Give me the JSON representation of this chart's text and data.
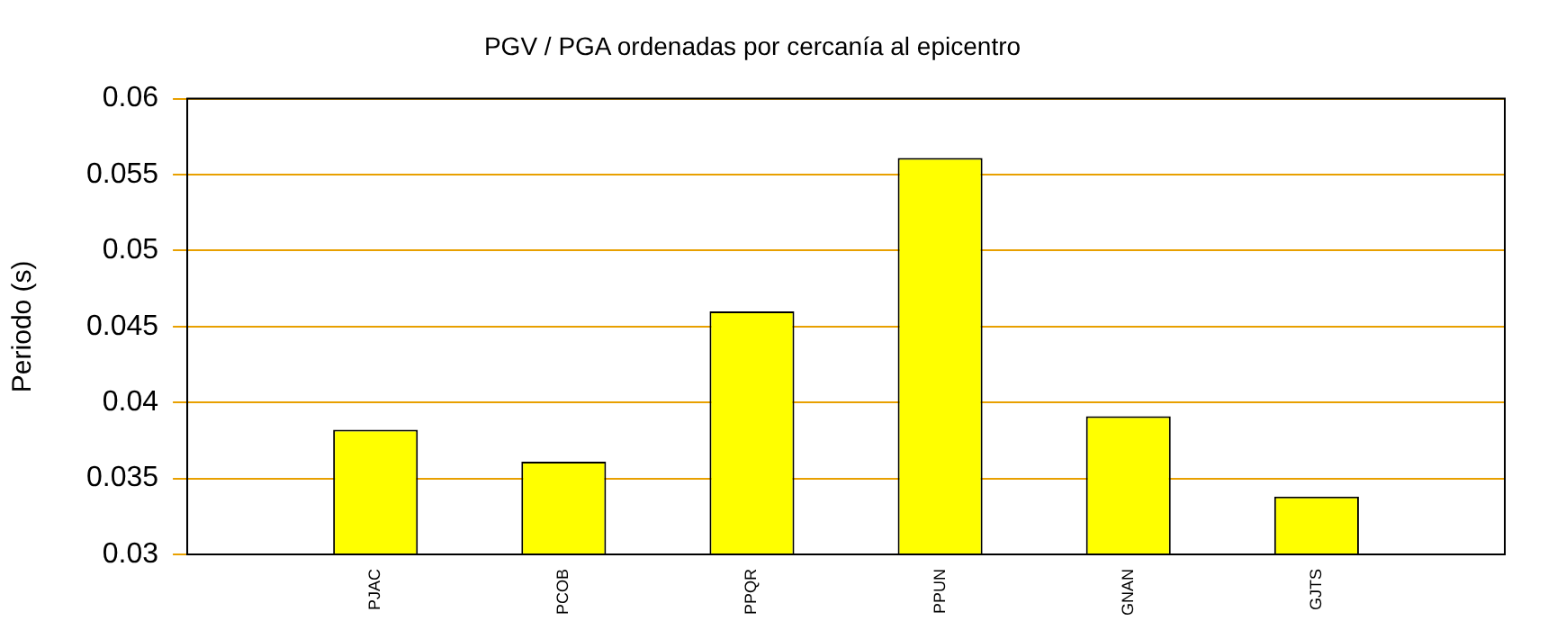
{
  "chart_data": {
    "type": "bar",
    "title": "PGV / PGA ordenadas por cercanía al epicentro",
    "ylabel": "Periodo (s)",
    "categories": [
      null,
      "PJAC",
      "PCOB",
      "PPQR",
      "PPUN",
      "GNAN",
      "GJTS",
      null
    ],
    "series": [
      {
        "color": "#ffff00",
        "values": [
          null,
          0.0382,
          0.0361,
          0.046,
          0.0561,
          0.0391,
          0.0338,
          null
        ]
      }
    ],
    "ylim": [
      0.03,
      0.06
    ],
    "yticks": [
      0.03,
      0.035,
      0.04,
      0.045,
      0.05,
      0.055,
      0.06
    ],
    "grid": "y",
    "legend": false
  }
}
